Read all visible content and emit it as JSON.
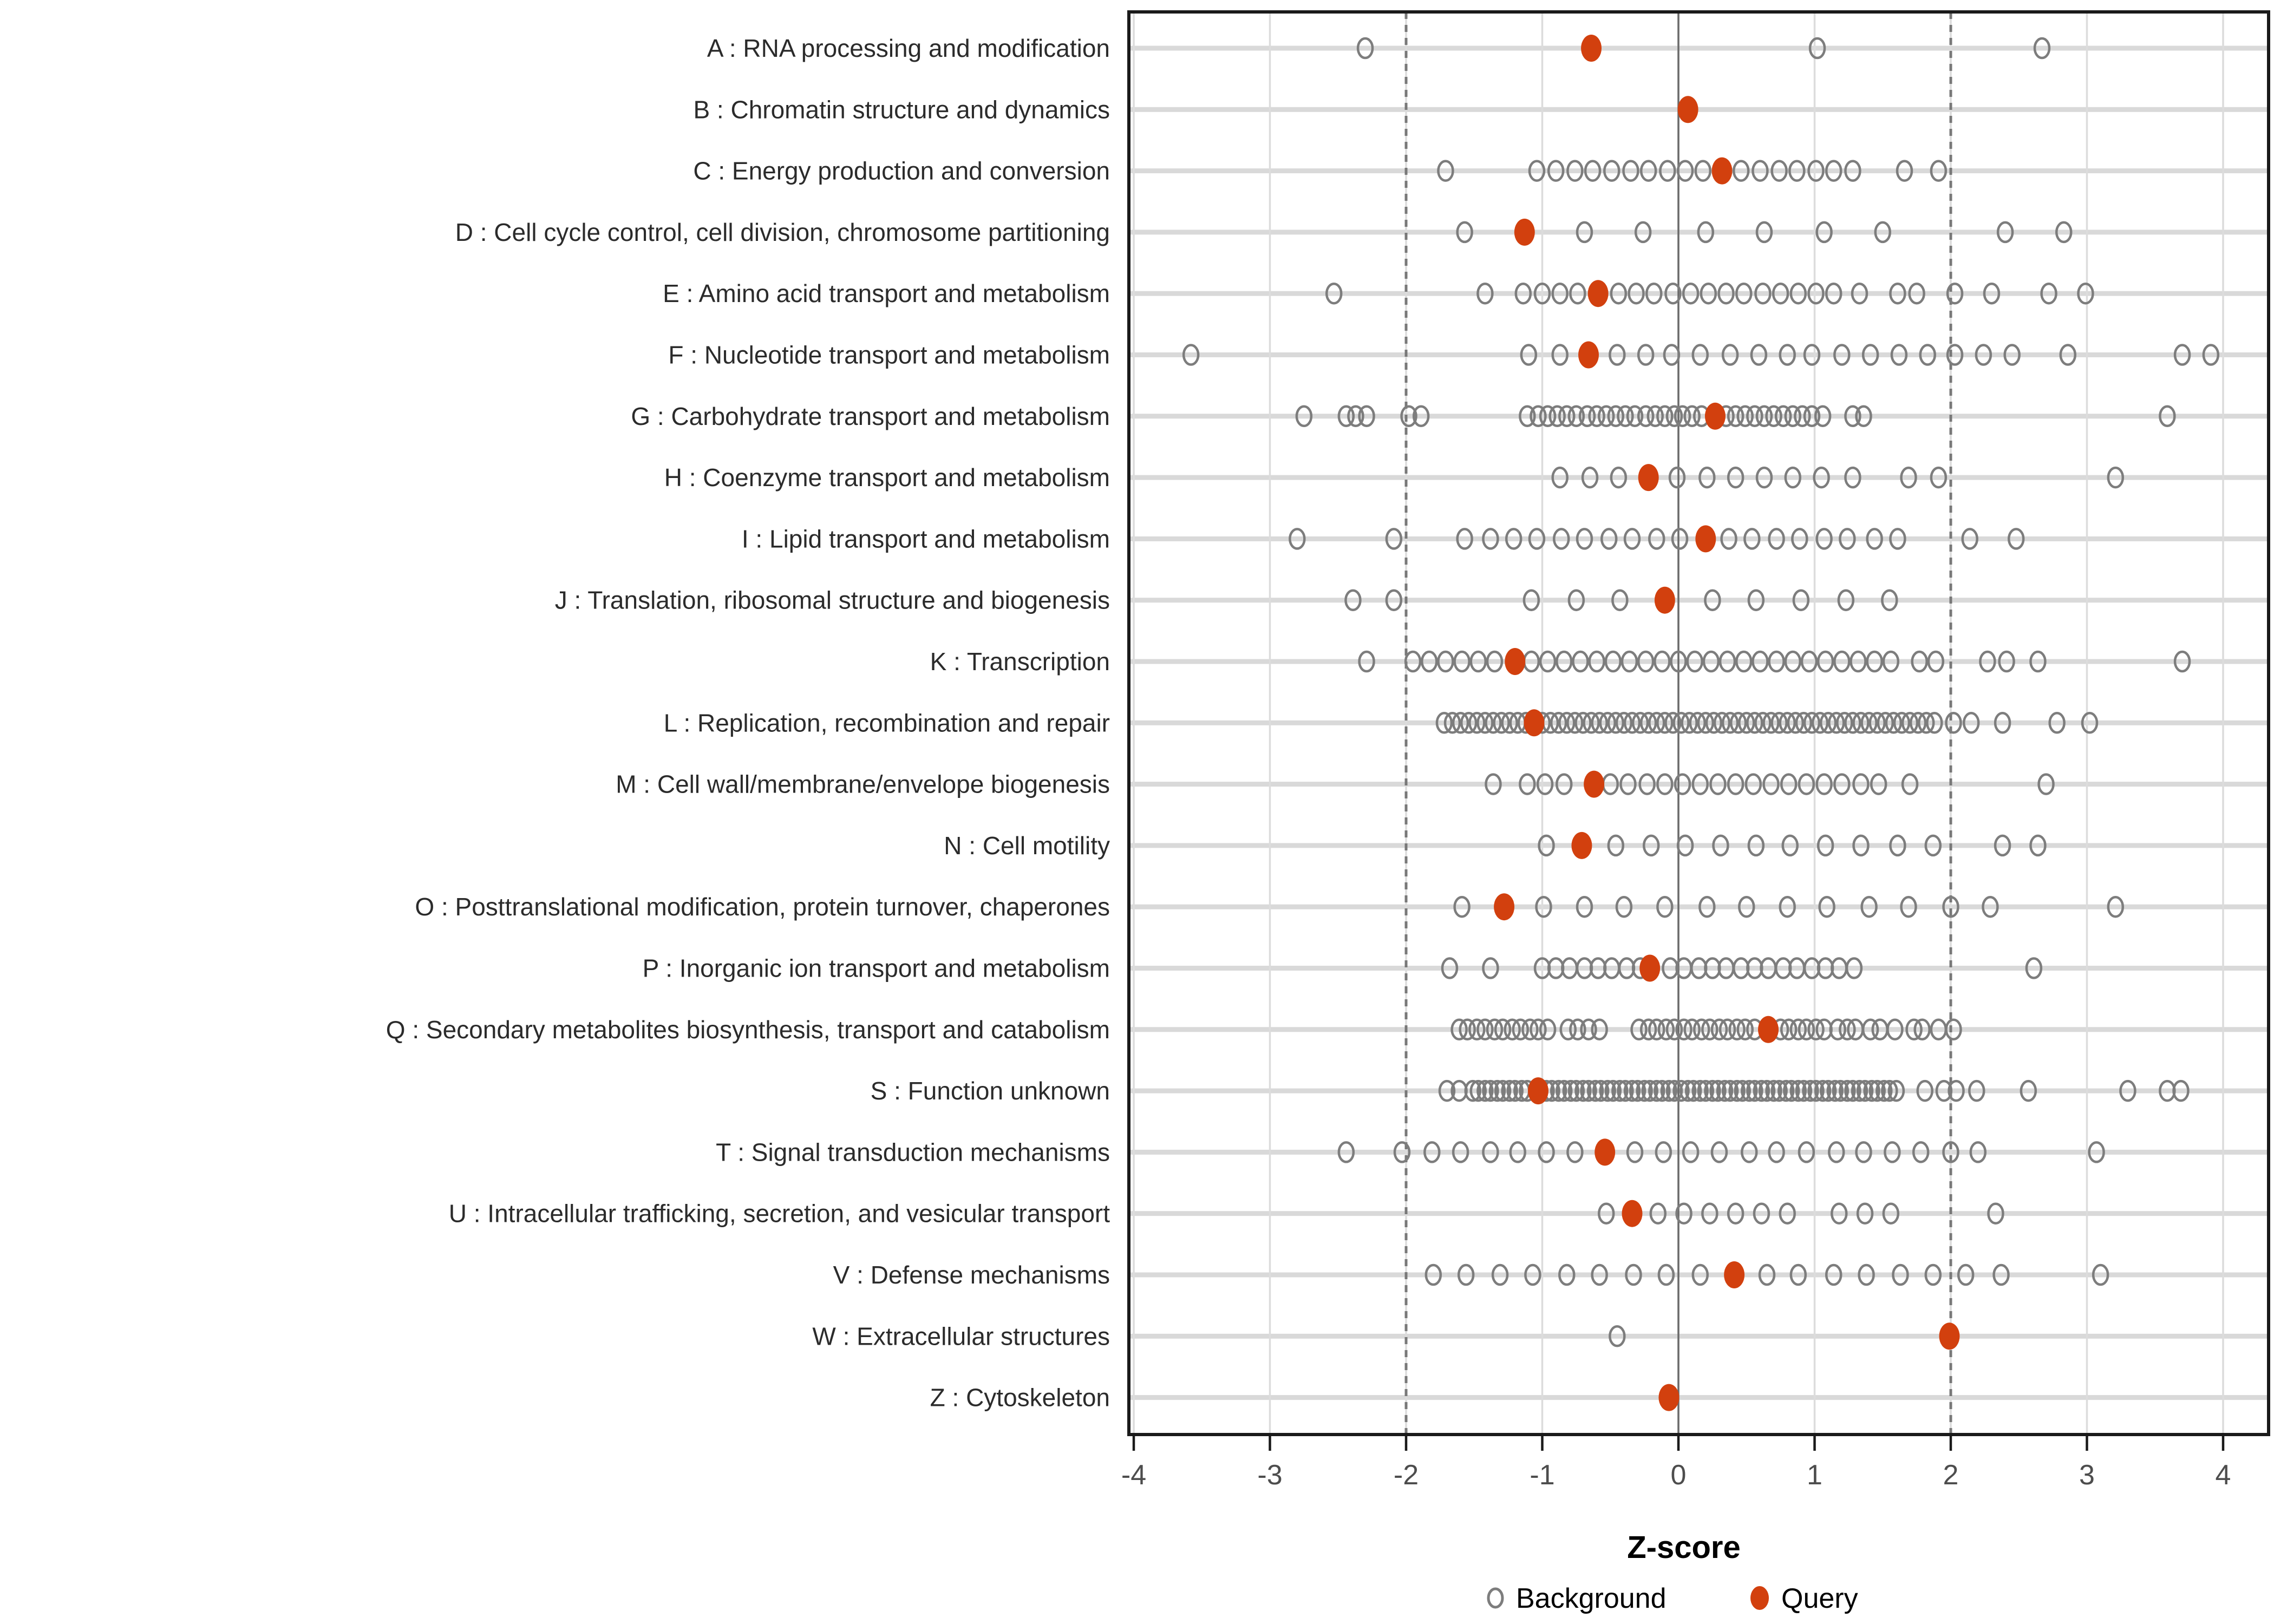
{
  "chart_data": {
    "type": "scatter",
    "title": "",
    "xlabel": "Z-score",
    "ylabel": "",
    "xlim": [
      -4.3,
      4.35
    ],
    "x_ticks": [
      -4,
      -3,
      -2,
      -1,
      0,
      1,
      2,
      3,
      4
    ],
    "reference_lines": {
      "solid_at": 0,
      "dashed_at": [
        -2,
        2
      ]
    },
    "grid": "on",
    "legend_position": "bottom",
    "legend": [
      {
        "label": "Background",
        "marker": "open-circle",
        "color": "#7d7d7d"
      },
      {
        "label": "Query",
        "marker": "filled-circle",
        "color": "#d2400e"
      }
    ],
    "colors": {
      "query": "#d2400e",
      "background_stroke": "#7d7d7d",
      "row_stripe": "#d9d9d9",
      "minor_grid": "#dcdcdc",
      "zero_line": "#6a6a6a",
      "dashed_line": "#787878",
      "panel_border": "#1a1a1a",
      "tick_text": "#4d4d4d"
    },
    "rows": [
      {
        "letter": "A",
        "label": "A : RNA processing and modification",
        "query": -0.64,
        "background": [
          -2.3,
          1.02,
          2.67
        ]
      },
      {
        "letter": "B",
        "label": "B : Chromatin structure and dynamics",
        "query": 0.07,
        "background": []
      },
      {
        "letter": "C",
        "label": "C : Energy production and conversion",
        "query": 0.32,
        "background": [
          -1.71,
          -1.04,
          -0.9,
          -0.76,
          -0.63,
          -0.49,
          -0.35,
          -0.22,
          -0.08,
          0.05,
          0.18,
          0.46,
          0.6,
          0.74,
          0.87,
          1.01,
          1.14,
          1.28,
          1.66,
          1.91
        ]
      },
      {
        "letter": "D",
        "label": "D : Cell cycle control, cell division, chromosome partitioning",
        "query": -1.13,
        "background": [
          -1.57,
          -0.69,
          -0.26,
          0.2,
          0.63,
          1.07,
          1.5,
          2.4,
          2.83
        ]
      },
      {
        "letter": "E",
        "label": "E : Amino acid transport and metabolism",
        "query": -0.59,
        "background": [
          -2.53,
          -1.42,
          -1.14,
          -1.0,
          -0.87,
          -0.74,
          -0.44,
          -0.31,
          -0.18,
          -0.04,
          0.09,
          0.22,
          0.35,
          0.48,
          0.62,
          0.75,
          0.88,
          1.01,
          1.14,
          1.33,
          1.61,
          1.75,
          2.03,
          2.3,
          2.72,
          2.99
        ]
      },
      {
        "letter": "F",
        "label": "F : Nucleotide transport and metabolism",
        "query": -0.66,
        "background": [
          -3.58,
          -1.1,
          -0.87,
          -0.45,
          -0.24,
          -0.05,
          0.16,
          0.38,
          0.59,
          0.8,
          0.98,
          1.2,
          1.41,
          1.62,
          1.83,
          2.03,
          2.24,
          2.45,
          2.86,
          3.7,
          3.91
        ]
      },
      {
        "letter": "G",
        "label": "G : Carbohydrate transport and metabolism",
        "query": 0.27,
        "background": [
          -2.75,
          -2.44,
          -2.37,
          -2.29,
          -1.98,
          -1.89,
          -1.11,
          -1.03,
          -0.96,
          -0.89,
          -0.82,
          -0.75,
          -0.67,
          -0.6,
          -0.53,
          -0.46,
          -0.39,
          -0.32,
          -0.24,
          -0.17,
          -0.1,
          -0.03,
          0.03,
          0.1,
          0.17,
          0.35,
          0.42,
          0.49,
          0.56,
          0.63,
          0.7,
          0.77,
          0.84,
          0.91,
          0.98,
          1.06,
          1.28,
          1.36,
          3.59
        ]
      },
      {
        "letter": "H",
        "label": "H : Coenzyme transport and metabolism",
        "query": -0.22,
        "background": [
          -0.87,
          -0.65,
          -0.44,
          -0.01,
          0.21,
          0.42,
          0.63,
          0.84,
          1.05,
          1.28,
          1.69,
          1.91,
          3.21
        ]
      },
      {
        "letter": "I",
        "label": "I : Lipid transport and metabolism",
        "query": 0.2,
        "background": [
          -2.8,
          -2.09,
          -1.57,
          -1.38,
          -1.21,
          -1.04,
          -0.86,
          -0.69,
          -0.51,
          -0.34,
          -0.16,
          0.01,
          0.37,
          0.54,
          0.72,
          0.89,
          1.07,
          1.24,
          1.44,
          1.61,
          2.14,
          2.48
        ]
      },
      {
        "letter": "J",
        "label": "J : Translation, ribosomal structure and biogenesis",
        "query": -0.1,
        "background": [
          -2.39,
          -2.09,
          -1.08,
          -0.75,
          -0.43,
          0.25,
          0.57,
          0.9,
          1.23,
          1.55
        ]
      },
      {
        "letter": "K",
        "label": "K : Transcription",
        "query": -1.2,
        "background": [
          -2.29,
          -1.95,
          -1.83,
          -1.71,
          -1.59,
          -1.47,
          -1.35,
          -1.08,
          -0.96,
          -0.84,
          -0.72,
          -0.6,
          -0.48,
          -0.36,
          -0.24,
          -0.12,
          0.0,
          0.12,
          0.24,
          0.36,
          0.48,
          0.6,
          0.72,
          0.84,
          0.96,
          1.08,
          1.2,
          1.32,
          1.44,
          1.56,
          1.77,
          1.89,
          2.27,
          2.41,
          2.64,
          3.7
        ]
      },
      {
        "letter": "L",
        "label": "L : Replication, recombination and repair",
        "query": -1.06,
        "background": [
          -1.72,
          -1.66,
          -1.6,
          -1.54,
          -1.48,
          -1.42,
          -1.36,
          -1.3,
          -1.24,
          -1.18,
          -1.12,
          -1.0,
          -0.94,
          -0.88,
          -0.82,
          -0.76,
          -0.7,
          -0.64,
          -0.58,
          -0.52,
          -0.46,
          -0.4,
          -0.34,
          -0.28,
          -0.22,
          -0.16,
          -0.1,
          -0.04,
          0.02,
          0.08,
          0.14,
          0.2,
          0.26,
          0.32,
          0.38,
          0.44,
          0.5,
          0.56,
          0.62,
          0.68,
          0.74,
          0.8,
          0.86,
          0.92,
          0.98,
          1.04,
          1.1,
          1.16,
          1.22,
          1.28,
          1.34,
          1.4,
          1.46,
          1.52,
          1.58,
          1.64,
          1.7,
          1.76,
          1.82,
          1.88,
          2.02,
          2.15,
          2.38,
          2.78,
          3.02
        ]
      },
      {
        "letter": "M",
        "label": "M : Cell wall/membrane/envelope biogenesis",
        "query": -0.62,
        "background": [
          -1.36,
          -1.11,
          -0.98,
          -0.84,
          -0.5,
          -0.37,
          -0.23,
          -0.1,
          0.03,
          0.16,
          0.29,
          0.42,
          0.55,
          0.68,
          0.81,
          0.94,
          1.07,
          1.2,
          1.34,
          1.47,
          1.7,
          2.7
        ]
      },
      {
        "letter": "N",
        "label": "N : Cell motility",
        "query": -0.71,
        "background": [
          -0.97,
          -0.46,
          -0.2,
          0.05,
          0.31,
          0.57,
          0.82,
          1.08,
          1.34,
          1.61,
          1.87,
          2.38,
          2.64
        ]
      },
      {
        "letter": "O",
        "label": "O : Posttranslational modification, protein turnover, chaperones",
        "query": -1.28,
        "background": [
          -1.59,
          -0.99,
          -0.69,
          -0.4,
          -0.1,
          0.21,
          0.5,
          0.8,
          1.09,
          1.4,
          1.69,
          2.0,
          2.29,
          3.21
        ]
      },
      {
        "letter": "P",
        "label": "P : Inorganic ion transport and metabolism",
        "query": -0.21,
        "background": [
          -1.68,
          -1.38,
          -1.0,
          -0.9,
          -0.8,
          -0.69,
          -0.59,
          -0.49,
          -0.38,
          -0.28,
          -0.06,
          0.04,
          0.15,
          0.25,
          0.35,
          0.46,
          0.56,
          0.66,
          0.77,
          0.87,
          0.98,
          1.08,
          1.18,
          1.29,
          2.61
        ]
      },
      {
        "letter": "Q",
        "label": "Q : Secondary metabolites biosynthesis, transport and catabolism",
        "query": 0.66,
        "background": [
          -1.61,
          -1.55,
          -1.48,
          -1.42,
          -1.35,
          -1.29,
          -1.22,
          -1.16,
          -1.09,
          -1.03,
          -0.96,
          -0.81,
          -0.74,
          -0.66,
          -0.58,
          -0.29,
          -0.22,
          -0.16,
          -0.09,
          -0.03,
          0.04,
          0.1,
          0.17,
          0.23,
          0.3,
          0.36,
          0.43,
          0.49,
          0.56,
          0.75,
          0.81,
          0.88,
          0.94,
          1.01,
          1.07,
          1.17,
          1.24,
          1.3,
          1.41,
          1.48,
          1.59,
          1.73,
          1.79,
          1.91,
          2.02
        ]
      },
      {
        "letter": "S",
        "label": "S : Function unknown",
        "query": -1.03,
        "background": [
          -1.7,
          -1.61,
          -1.51,
          -1.47,
          -1.42,
          -1.38,
          -1.33,
          -1.29,
          -1.24,
          -1.2,
          -1.15,
          -1.11,
          -0.97,
          -0.93,
          -0.88,
          -0.84,
          -0.79,
          -0.75,
          -0.7,
          -0.66,
          -0.61,
          -0.57,
          -0.52,
          -0.48,
          -0.43,
          -0.39,
          -0.34,
          -0.3,
          -0.25,
          -0.21,
          -0.16,
          -0.12,
          -0.07,
          -0.03,
          0.02,
          0.07,
          0.11,
          0.16,
          0.2,
          0.25,
          0.29,
          0.34,
          0.38,
          0.43,
          0.47,
          0.52,
          0.56,
          0.61,
          0.65,
          0.7,
          0.74,
          0.79,
          0.83,
          0.88,
          0.92,
          0.97,
          1.01,
          1.06,
          1.1,
          1.15,
          1.19,
          1.24,
          1.28,
          1.33,
          1.37,
          1.42,
          1.46,
          1.51,
          1.55,
          1.6,
          1.81,
          1.95,
          2.04,
          2.19,
          2.57,
          3.3,
          3.59,
          3.69
        ]
      },
      {
        "letter": "T",
        "label": "T : Signal transduction mechanisms",
        "query": -0.54,
        "background": [
          -2.44,
          -2.03,
          -1.81,
          -1.6,
          -1.38,
          -1.18,
          -0.97,
          -0.76,
          -0.32,
          -0.11,
          0.09,
          0.3,
          0.52,
          0.72,
          0.94,
          1.16,
          1.36,
          1.57,
          1.78,
          2.0,
          2.2,
          3.07
        ]
      },
      {
        "letter": "U",
        "label": "U : Intracellular trafficking, secretion, and vesicular transport",
        "query": -0.34,
        "background": [
          -0.53,
          -0.15,
          0.04,
          0.23,
          0.42,
          0.61,
          0.8,
          1.18,
          1.37,
          1.56,
          2.33
        ]
      },
      {
        "letter": "V",
        "label": "V : Defense mechanisms",
        "query": 0.41,
        "background": [
          -1.8,
          -1.56,
          -1.31,
          -1.07,
          -0.82,
          -0.58,
          -0.33,
          -0.09,
          0.16,
          0.65,
          0.88,
          1.14,
          1.38,
          1.63,
          1.87,
          2.11,
          2.37,
          3.1
        ]
      },
      {
        "letter": "W",
        "label": "W : Extracellular structures",
        "query": 1.99,
        "background": [
          -0.45
        ]
      },
      {
        "letter": "Z",
        "label": "Z : Cytoskeleton",
        "query": -0.07,
        "background": []
      }
    ]
  }
}
